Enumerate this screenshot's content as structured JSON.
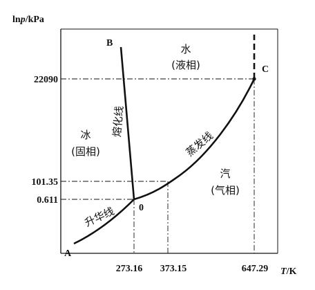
{
  "diagram": {
    "y_axis_label_prefix": "ln",
    "y_axis_label_var": "p",
    "y_axis_label_unit": "/kPa",
    "x_axis_label_var": "T",
    "x_axis_label_unit": "/K",
    "y_ticks": [
      "22090",
      "101.35",
      "0.611"
    ],
    "x_ticks": [
      "273.16",
      "373.15",
      "647.29"
    ],
    "points": {
      "A": "A",
      "B": "B",
      "C": "C",
      "O": "0"
    },
    "regions": {
      "liquid_name": "水",
      "liquid_phase": "(液相)",
      "solid_name": "冰",
      "solid_phase": "(固相)",
      "vapor_name": "汽",
      "vapor_phase": "(气相)"
    },
    "curves": {
      "melting": "熔化线",
      "vaporization": "蒸发线",
      "sublimation": "升华线"
    }
  }
}
